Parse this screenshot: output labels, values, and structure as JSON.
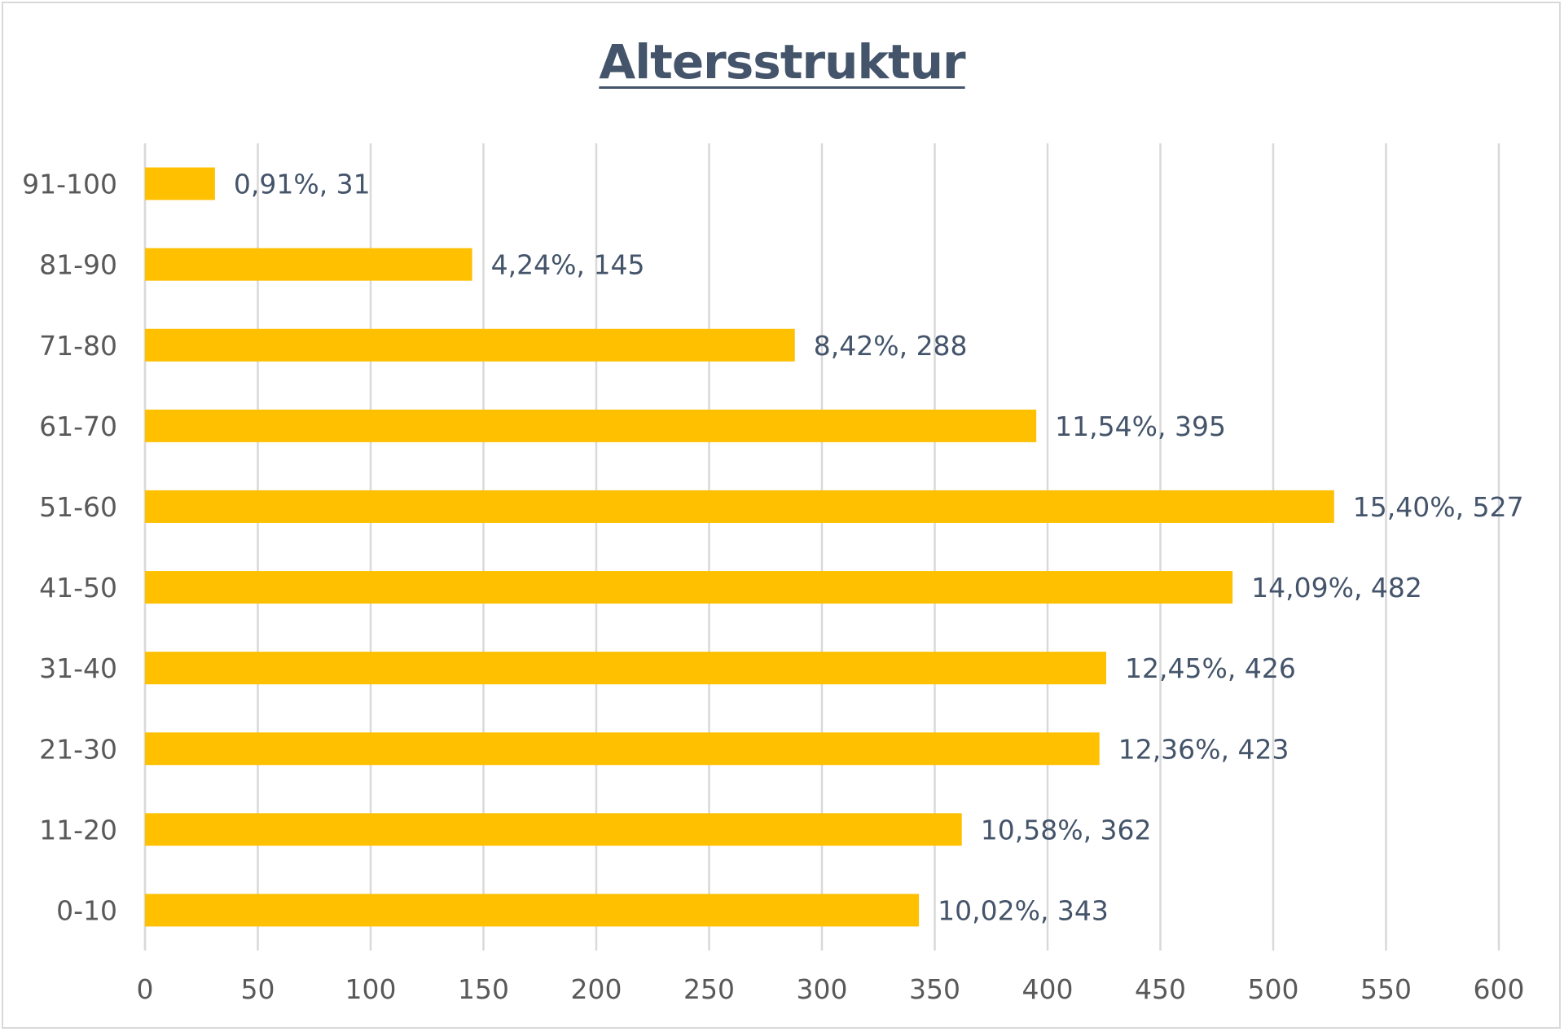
{
  "chart_data": {
    "type": "bar",
    "orientation": "horizontal",
    "title": "Altersstruktur",
    "categories": [
      "0-10",
      "11-20",
      "21-30",
      "31-40",
      "41-50",
      "51-60",
      "61-70",
      "71-80",
      "81-90",
      "91-100"
    ],
    "values": [
      343,
      362,
      423,
      426,
      482,
      527,
      395,
      288,
      145,
      31
    ],
    "data_labels": [
      "10,02%, 343",
      "10,58%, 362",
      "12,36%, 423",
      "12,45%, 426",
      "14,09%, 482",
      "15,40%, 527",
      "11,54%, 395",
      "8,42%, 288",
      "4,24%, 145",
      "0,91%, 31"
    ],
    "x_ticks": [
      "0",
      "50",
      "100",
      "150",
      "200",
      "250",
      "300",
      "350",
      "400",
      "450",
      "500",
      "550",
      "600"
    ],
    "xlim": [
      0,
      600
    ],
    "grid": true,
    "legend": "none",
    "bar_color": "#ffc000",
    "grid_color": "#d9d9d9"
  }
}
